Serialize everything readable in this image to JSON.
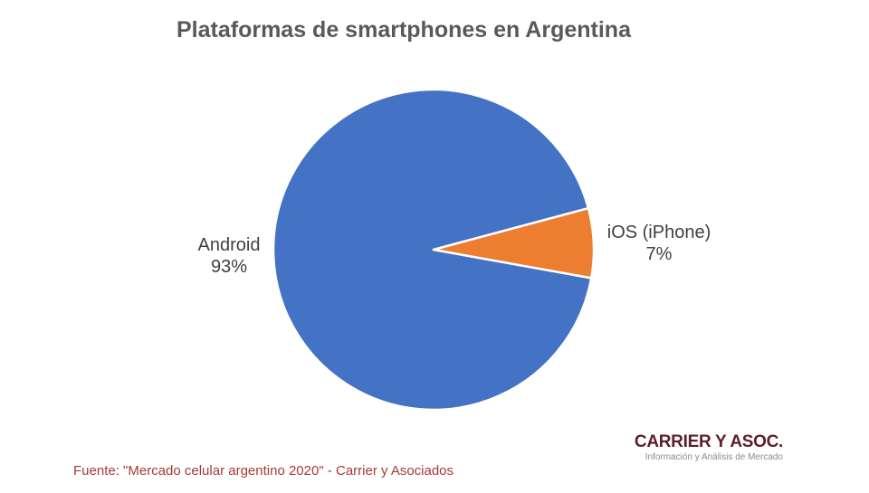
{
  "chart_data": {
    "type": "pie",
    "title": "Plataformas de smartphones en Argentina",
    "slices": [
      {
        "label": "Android",
        "value": 93,
        "pct_label": "93%",
        "color": "#4472C4"
      },
      {
        "label": "iOS (iPhone)",
        "value": 7,
        "pct_label": "7%",
        "color": "#ED7D31"
      }
    ],
    "start_angle_deg": 100.2,
    "legend": "none",
    "labels_position": "outside-end",
    "slice_border_color": "#FFFFFF"
  },
  "source_note": "Fuente: \"Mercado celular argentino 2020\" - Carrier y Asociados",
  "logo": {
    "name": "CARRIER Y ASOC.",
    "tagline": "Información y Análisis de Mercado"
  },
  "colors": {
    "background": "#FFFFFF",
    "title_text": "#595959",
    "label_text": "#404040",
    "source_text": "#A63A32",
    "logo_text": "#5E1F28",
    "tagline_text": "#8C8C8C"
  }
}
